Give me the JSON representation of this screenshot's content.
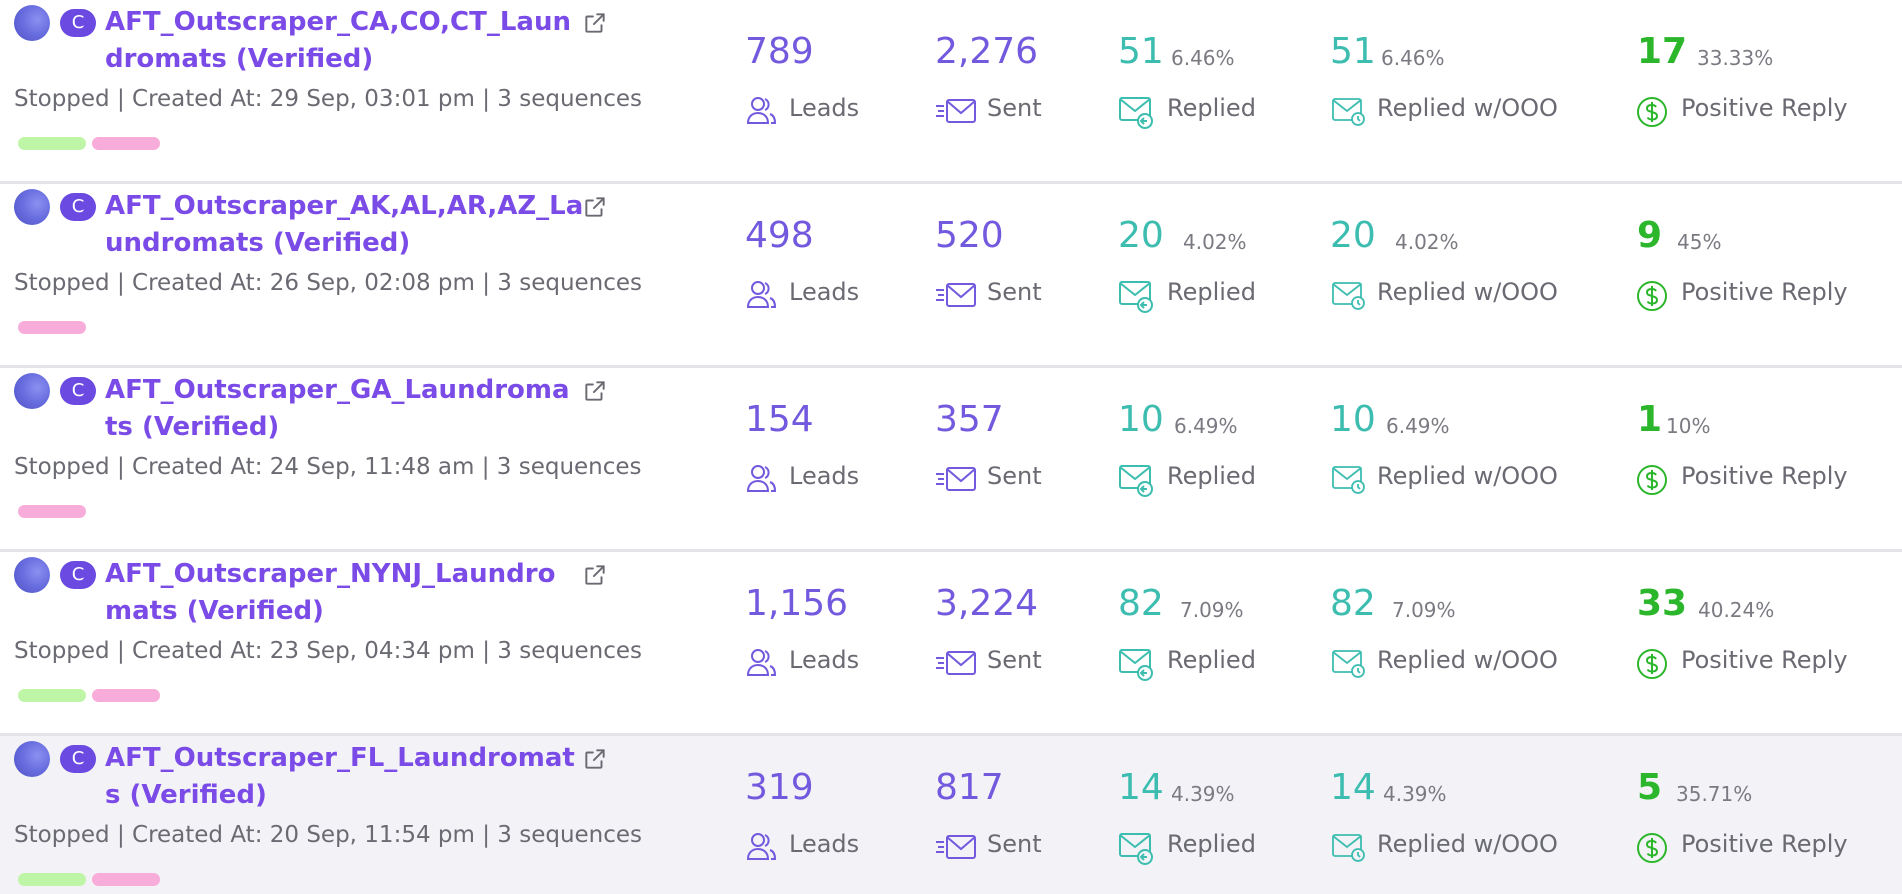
{
  "stat_labels": {
    "leads": "Leads",
    "sent": "Sent",
    "replied": "Replied",
    "replied_ooo": "Replied w/OOO",
    "positive": "Positive Reply"
  },
  "badge_letter": "C",
  "colors": {
    "name": "#7a4be6",
    "count": "#7359de",
    "reply": "#3cbdb0",
    "positive": "#2bb62b",
    "tag_green": "#bff5a6",
    "tag_pink": "#f7acd9"
  },
  "icons": [
    "avatar",
    "external-link-icon",
    "users-icon",
    "send-mail-icon",
    "mail-replied-icon",
    "mail-ooo-icon",
    "dollar-circle-icon"
  ],
  "campaigns": [
    {
      "name_line1": "AFT_Outscraper_CA,CO,CT_Laun",
      "name_line2": "dromats (Verified)",
      "meta": "Stopped | Created At: 29 Sep, 03:01 pm | 3 sequences",
      "tags": [
        "green",
        "pink"
      ],
      "leads": "789",
      "sent": "2,276",
      "replied": "51",
      "replied_pct": "6.46%",
      "replied_ooo": "51",
      "replied_ooo_pct": "6.46%",
      "positive": "17",
      "positive_pct": "33.33%"
    },
    {
      "name_line1": "AFT_Outscraper_AK,AL,AR,AZ_La",
      "name_line2": "undromats (Verified)",
      "meta": "Stopped | Created At: 26 Sep, 02:08 pm | 3 sequences",
      "tags": [
        "pink"
      ],
      "leads": "498",
      "sent": "520",
      "replied": "20",
      "replied_pct": "4.02%",
      "replied_ooo": "20",
      "replied_ooo_pct": "4.02%",
      "positive": "9",
      "positive_pct": "45%"
    },
    {
      "name_line1": "AFT_Outscraper_GA_Laundroma",
      "name_line2": "ts (Verified)",
      "meta": "Stopped | Created At: 24 Sep, 11:48 am | 3 sequences",
      "tags": [
        "pink"
      ],
      "leads": "154",
      "sent": "357",
      "replied": "10",
      "replied_pct": "6.49%",
      "replied_ooo": "10",
      "replied_ooo_pct": "6.49%",
      "positive": "1",
      "positive_pct": "10%"
    },
    {
      "name_line1": "AFT_Outscraper_NYNJ_Laundro",
      "name_line2": "mats (Verified)",
      "meta": "Stopped | Created At: 23 Sep, 04:34 pm | 3 sequences",
      "tags": [
        "green",
        "pink"
      ],
      "leads": "1,156",
      "sent": "3,224",
      "replied": "82",
      "replied_pct": "7.09%",
      "replied_ooo": "82",
      "replied_ooo_pct": "7.09%",
      "positive": "33",
      "positive_pct": "40.24%"
    },
    {
      "name_line1": "AFT_Outscraper_FL_Laundromat",
      "name_line2": "s (Verified)",
      "meta": "Stopped | Created At: 20 Sep, 11:54 pm | 3 sequences",
      "tags": [
        "green",
        "pink"
      ],
      "leads": "319",
      "sent": "817",
      "replied": "14",
      "replied_pct": "4.39%",
      "replied_ooo": "14",
      "replied_ooo_pct": "4.39%",
      "positive": "5",
      "positive_pct": "35.71%"
    }
  ]
}
